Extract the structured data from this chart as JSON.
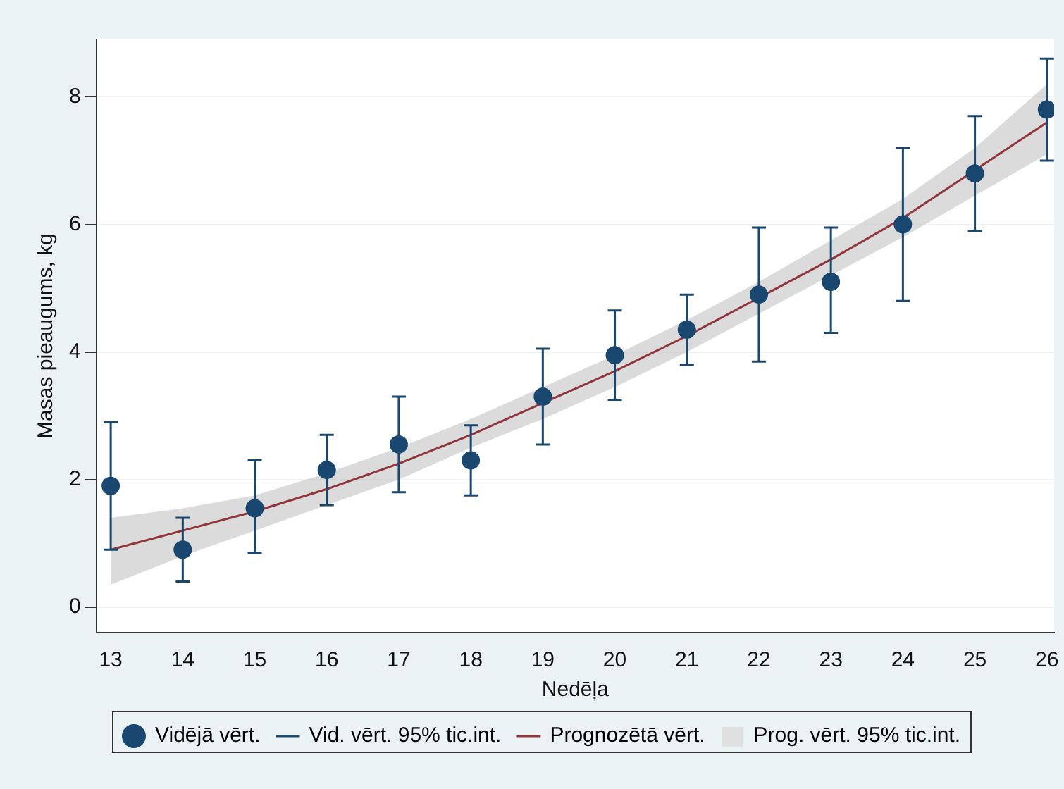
{
  "chart_data": {
    "type": "scatter",
    "xlabel": "Nedēļa",
    "ylabel": "Masas pieaugums, kg",
    "x": [
      13,
      14,
      15,
      16,
      17,
      18,
      19,
      20,
      21,
      22,
      23,
      24,
      25,
      26
    ],
    "xlim": [
      12.8,
      26.1
    ],
    "xticks": [
      13,
      14,
      15,
      16,
      17,
      18,
      19,
      20,
      21,
      22,
      23,
      24,
      25,
      26
    ],
    "ylim": [
      -0.4,
      8.9
    ],
    "yticks": [
      0,
      2,
      4,
      6,
      8
    ],
    "grid": "y",
    "legend": "bottom",
    "annotations": [
      "Vid. vērt. 95% tic.int.",
      "Prog. vērt. 95% tic.int."
    ],
    "series": [
      {
        "name": "Vidējā vērt.",
        "type": "scatter",
        "marker": "circle",
        "color": "#1a476f",
        "values": [
          1.9,
          0.9,
          1.55,
          2.15,
          2.55,
          2.3,
          3.3,
          3.95,
          4.35,
          4.9,
          5.1,
          6.0,
          6.8,
          7.8
        ],
        "errors": [
          [
            0.9,
            2.9
          ],
          [
            0.4,
            1.4
          ],
          [
            0.85,
            2.3
          ],
          [
            1.6,
            2.7
          ],
          [
            1.8,
            3.3
          ],
          [
            1.75,
            2.85
          ],
          [
            2.55,
            4.05
          ],
          [
            3.25,
            4.65
          ],
          [
            3.8,
            4.9
          ],
          [
            3.85,
            5.95
          ],
          [
            4.3,
            5.95
          ],
          [
            4.8,
            7.2
          ],
          [
            5.9,
            7.7
          ],
          [
            7.0,
            8.6
          ]
        ]
      },
      {
        "name": "Prognozētā vērt.",
        "type": "line",
        "marker": "none",
        "color": "#90353b",
        "values": [
          0.9,
          1.2,
          1.5,
          1.85,
          2.25,
          2.7,
          3.2,
          3.7,
          4.25,
          4.85,
          5.45,
          6.1,
          6.85,
          7.6
        ],
        "lower": [
          0.35,
          0.8,
          1.2,
          1.6,
          2.0,
          2.5,
          2.95,
          3.45,
          4.0,
          4.6,
          5.2,
          5.8,
          6.45,
          7.1
        ],
        "upper": [
          1.4,
          1.55,
          1.75,
          2.1,
          2.5,
          2.95,
          3.45,
          3.95,
          4.5,
          5.1,
          5.75,
          6.4,
          7.2,
          8.2
        ]
      }
    ]
  }
}
